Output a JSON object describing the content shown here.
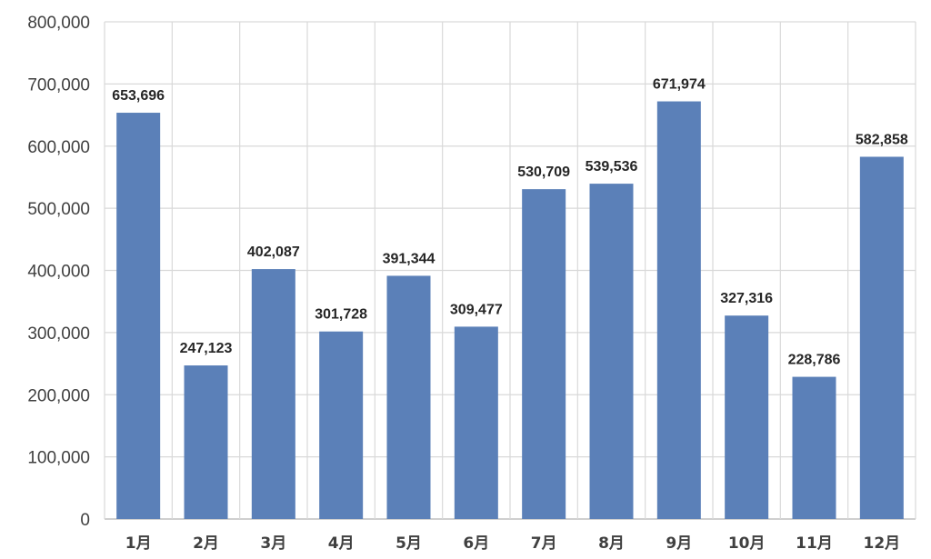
{
  "chart_data": {
    "type": "bar",
    "title": "",
    "xlabel": "",
    "ylabel": "",
    "categories": [
      "1月",
      "2月",
      "3月",
      "4月",
      "5月",
      "6月",
      "7月",
      "8月",
      "9月",
      "10月",
      "11月",
      "12月"
    ],
    "values": [
      653696,
      247123,
      402087,
      301728,
      391344,
      309477,
      530709,
      539536,
      671974,
      327316,
      228786,
      582858
    ],
    "value_labels": [
      "653,696",
      "247,123",
      "402,087",
      "301,728",
      "391,344",
      "309,477",
      "530,709",
      "539,536",
      "671,974",
      "327,316",
      "228,786",
      "582,858"
    ],
    "ylim": [
      0,
      800000
    ],
    "y_ticks": [
      0,
      100000,
      200000,
      300000,
      400000,
      500000,
      600000,
      700000,
      800000
    ],
    "y_tick_labels": [
      "0",
      "100,000",
      "200,000",
      "300,000",
      "400,000",
      "500,000",
      "600,000",
      "700,000",
      "800,000"
    ],
    "grid": true,
    "legend": "none",
    "colors": {
      "bar": "#5b80b8",
      "grid": "#d9d9d9"
    }
  }
}
